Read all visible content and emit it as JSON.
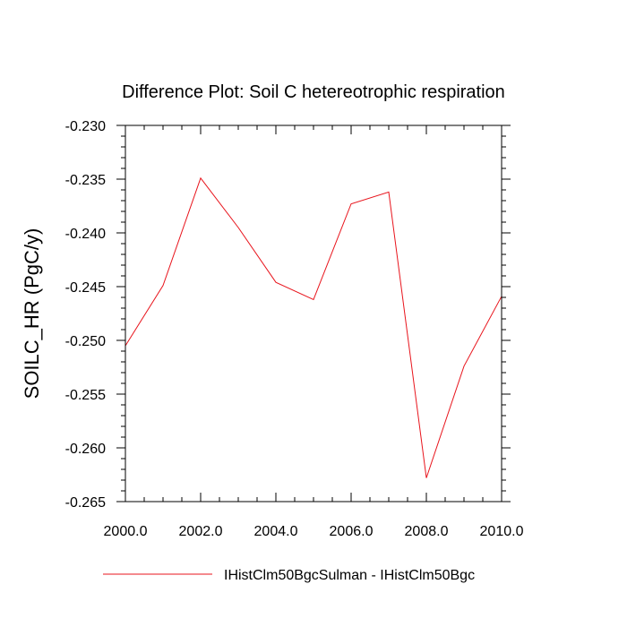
{
  "chart_data": {
    "type": "line",
    "title": "Difference Plot: Soil C hetereotrophic respiration",
    "xlabel": "",
    "ylabel": "SOILC_HR  (PgC/y)",
    "xlim": [
      2000,
      2010
    ],
    "ylim": [
      -0.265,
      -0.23
    ],
    "x_ticks": [
      2000,
      2002,
      2004,
      2006,
      2008,
      2010
    ],
    "x_tick_labels": [
      "2000.0",
      "2002.0",
      "2004.0",
      "2006.0",
      "2008.0",
      "2010.0"
    ],
    "y_ticks": [
      -0.23,
      -0.235,
      -0.24,
      -0.245,
      -0.25,
      -0.255,
      -0.26,
      -0.265
    ],
    "y_tick_labels": [
      "-0.230",
      "-0.235",
      "-0.240",
      "-0.245",
      "-0.250",
      "-0.255",
      "-0.260",
      "-0.265"
    ],
    "grid": false,
    "legend_position": "bottom",
    "series": [
      {
        "name": "IHistClm50BgcSulman - IHistClm50Bgc",
        "color": "#e8141c",
        "x": [
          2000,
          2001,
          2002,
          2003,
          2004,
          2005,
          2006,
          2007,
          2008,
          2009,
          2010
        ],
        "y": [
          -0.2505,
          -0.2449,
          -0.2349,
          -0.2395,
          -0.2446,
          -0.2462,
          -0.2373,
          -0.2362,
          -0.2628,
          -0.2524,
          -0.2459
        ]
      }
    ]
  }
}
